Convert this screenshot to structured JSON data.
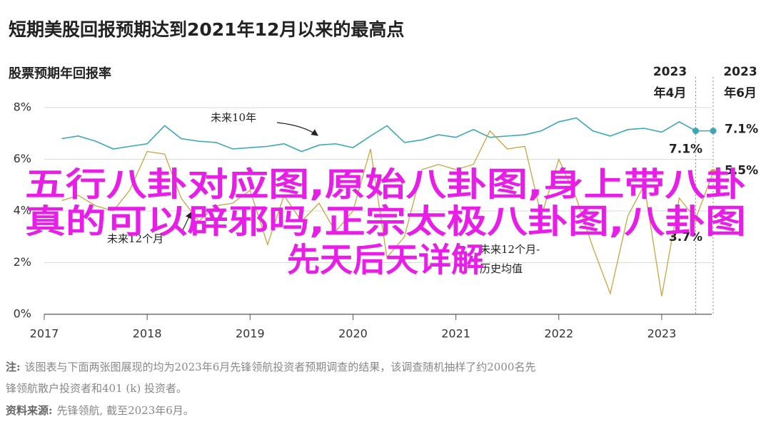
{
  "chart_data": {
    "type": "line",
    "title": "短期美股回报预期达到2021年12月以来的最高点",
    "subtitle": "股票预期年回报率",
    "x": [
      2017.17,
      2017.33,
      2017.5,
      2017.67,
      2017.83,
      2018,
      2018.17,
      2018.33,
      2018.5,
      2018.67,
      2018.83,
      2019,
      2019.17,
      2019.33,
      2019.5,
      2019.67,
      2019.83,
      2020,
      2020.17,
      2020.33,
      2020.5,
      2020.67,
      2020.83,
      2021,
      2021.17,
      2021.33,
      2021.5,
      2021.67,
      2021.83,
      2022,
      2022.17,
      2022.33,
      2022.5,
      2022.67,
      2022.83,
      2023,
      2023.17,
      2023.33,
      2023.5
    ],
    "series": [
      {
        "name": "未来10年",
        "color": "#3aa8b4",
        "values": [
          6.8,
          6.9,
          6.7,
          6.4,
          6.5,
          6.6,
          7.3,
          6.8,
          6.7,
          6.65,
          6.4,
          6.45,
          6.5,
          6.6,
          6.3,
          6.55,
          6.6,
          6.45,
          6.9,
          7.3,
          6.65,
          6.75,
          6.95,
          6.85,
          7.15,
          6.85,
          6.9,
          6.95,
          7.1,
          7.45,
          7.6,
          7.1,
          6.9,
          7.15,
          7.2,
          7.05,
          7.45,
          7.1,
          7.1
        ],
        "value_labels": [
          null,
          null,
          null,
          null,
          null,
          null,
          null,
          null,
          null,
          null,
          null,
          null,
          null,
          null,
          null,
          null,
          null,
          null,
          null,
          null,
          null,
          null,
          null,
          null,
          null,
          null,
          null,
          null,
          null,
          null,
          null,
          null,
          null,
          null,
          null,
          null,
          null,
          "7.1%",
          "7.1%"
        ]
      },
      {
        "name": "未来12个月",
        "color": "#caa441",
        "values": [
          4.4,
          4.6,
          4.2,
          4.0,
          4.8,
          6.3,
          6.2,
          4.5,
          3.6,
          4.2,
          4.3,
          4.8,
          2.7,
          4.6,
          3.6,
          4.3,
          3.2,
          4.0,
          6.4,
          2.2,
          3.0,
          5.6,
          5.8,
          5.6,
          5.8,
          7.1,
          6.4,
          6.5,
          3.8,
          6.0,
          4.5,
          2.6,
          0.8,
          3.8,
          5.0,
          0.7,
          4.5,
          3.7,
          5.5
        ],
        "value_labels": [
          null,
          null,
          null,
          null,
          null,
          null,
          null,
          null,
          null,
          null,
          null,
          null,
          null,
          null,
          null,
          null,
          null,
          null,
          null,
          null,
          null,
          null,
          null,
          null,
          null,
          null,
          null,
          null,
          null,
          null,
          null,
          null,
          null,
          null,
          null,
          null,
          null,
          "3.7%",
          "5.5%"
        ]
      }
    ],
    "annotations": [
      {
        "lines": [
          "未来12个月-",
          "历史均值"
        ]
      }
    ],
    "markers": [
      {
        "x": 2023.33,
        "label": [
          "2023",
          "年4月"
        ]
      },
      {
        "x": 2023.5,
        "label": [
          "2023",
          "年6月"
        ]
      }
    ],
    "xlim": [
      2017,
      2023.5
    ],
    "xticks": [
      2017,
      2018,
      2019,
      2020,
      2021,
      2022,
      2023
    ],
    "ylim": [
      0,
      8
    ],
    "yticks": [
      {
        "value": 0,
        "label": "0%"
      },
      {
        "value": 2,
        "label": "2%"
      },
      {
        "value": 4,
        "label": "4%"
      },
      {
        "value": 6,
        "label": "6%"
      },
      {
        "value": 8,
        "label": "8%"
      }
    ],
    "grid": true
  },
  "footer": {
    "note_label": "注:",
    "note_lines": [
      "该图表与下面两张图展现的均为2023年6月先锋领航投资者预期调查的结果，该调查随机抽样了约2000名先",
      "锋领航散户投资者和401 (k) 投资者。"
    ],
    "source_label": "资料来源:",
    "source_text": "先锋领航, 截至2023年6月。"
  },
  "overlay": {
    "lines": [
      "五行八卦对应图,原始八卦图,身上带八卦",
      "真的可以辟邪吗,正宗太极八卦图,八卦图",
      "先天后天详解"
    ]
  }
}
